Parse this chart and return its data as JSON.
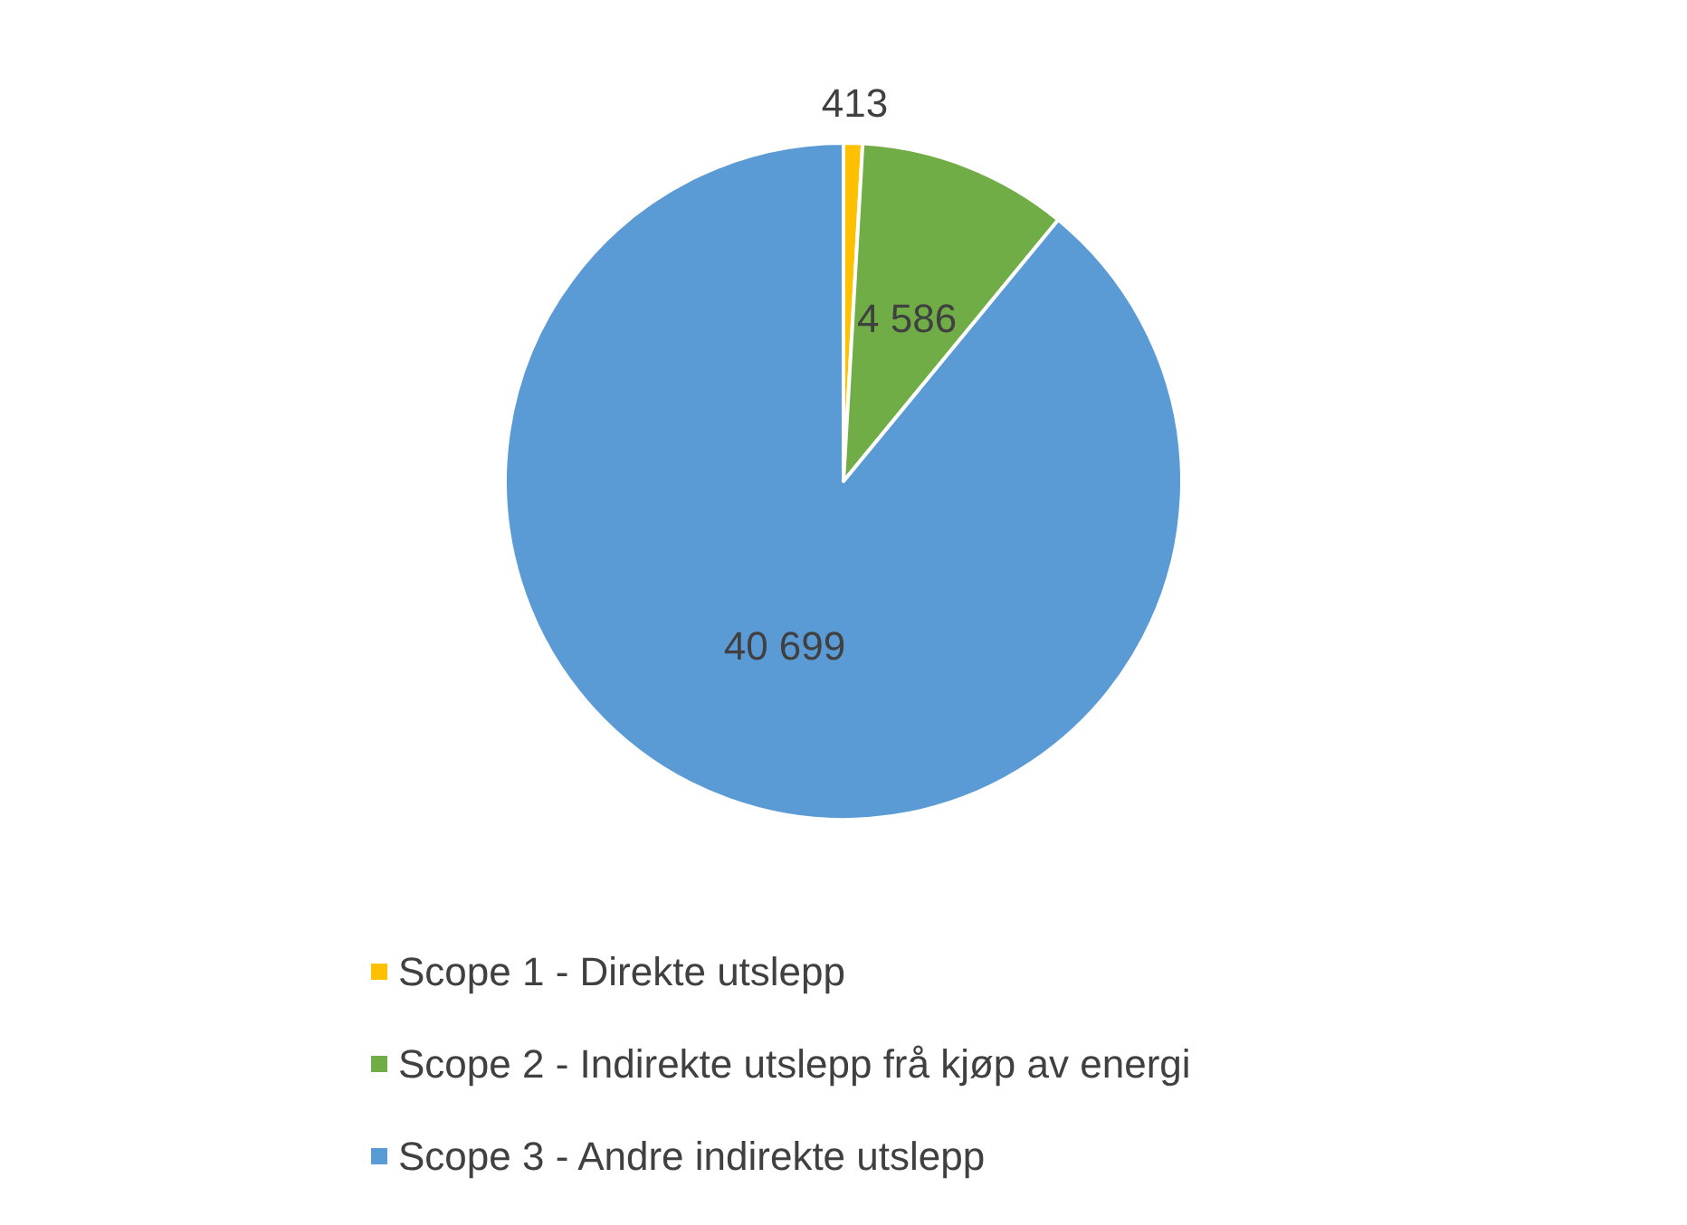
{
  "chart_data": {
    "type": "pie",
    "categories": [
      "Scope 1 - Direkte utslepp",
      "Scope 2 - Indirekte utslepp frå kjøp av energi",
      "Scope 3 - Andre indirekte utslepp"
    ],
    "values": [
      413,
      4586,
      40699
    ],
    "colors": [
      "#ffc000",
      "#70ad47",
      "#5b9bd5"
    ],
    "value_labels": [
      "413",
      "4 586",
      "40 699"
    ],
    "legend": "bottom"
  }
}
